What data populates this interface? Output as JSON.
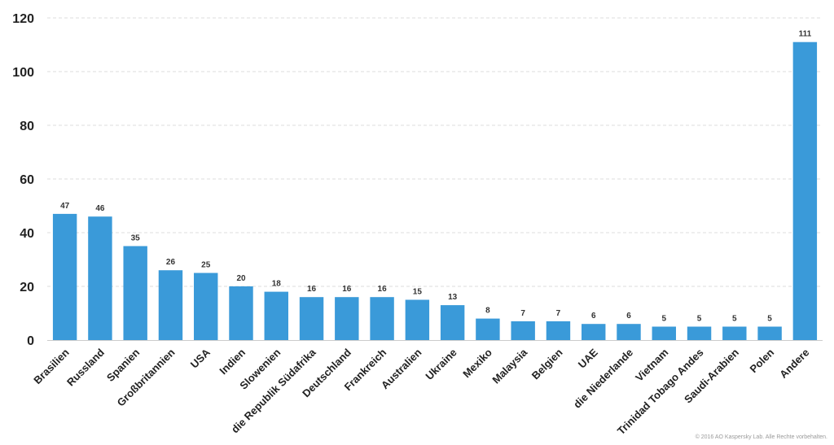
{
  "chart_data": {
    "type": "bar",
    "categories": [
      "Brasilien",
      "Russland",
      "Spanien",
      "Großbritannien",
      "USA",
      "Indien",
      "Slowenien",
      "die Republik Südafrika",
      "Deutschland",
      "Frankreich",
      "Australien",
      "Ukraine",
      "Mexiko",
      "Malaysia",
      "Belgien",
      "UAE",
      "die Niederlande",
      "Vietnam",
      "Trinidad Tobago Andes",
      "Saudi-Arabien",
      "Polen",
      "Andere"
    ],
    "values": [
      47,
      46,
      35,
      26,
      25,
      20,
      18,
      16,
      16,
      16,
      15,
      13,
      8,
      7,
      7,
      6,
      6,
      5,
      5,
      5,
      5,
      111
    ],
    "title": "",
    "xlabel": "",
    "ylabel": "",
    "ylim": [
      0,
      120
    ],
    "yticks": [
      0,
      20,
      40,
      60,
      80,
      100,
      120
    ],
    "grid": true,
    "bar_color": "#3a9ad9",
    "grid_color": "#dddddd"
  },
  "footer": {
    "copyright": "© 2016 AO Kaspersky Lab. Alle Rechte vorbehalten."
  }
}
